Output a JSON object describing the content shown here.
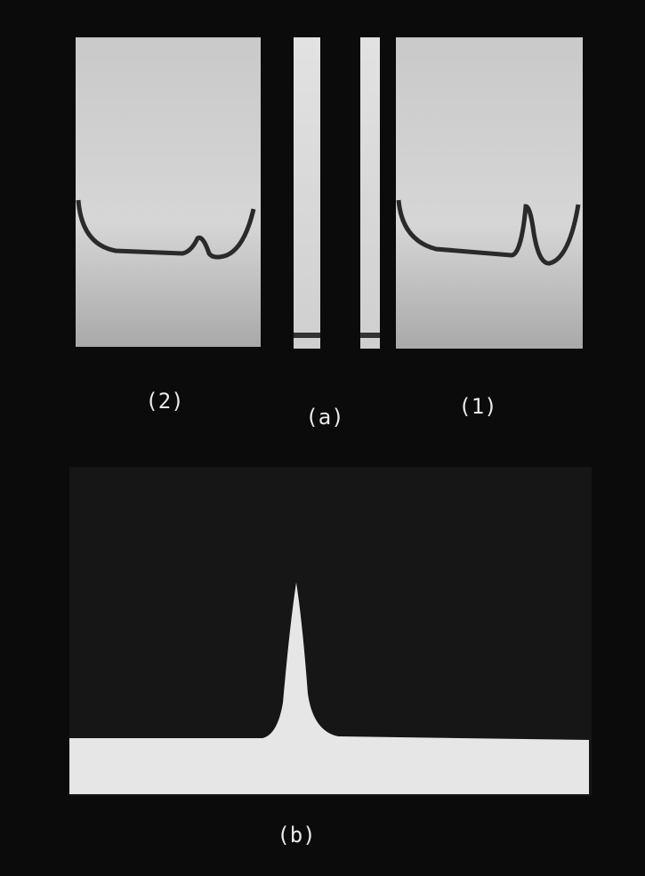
{
  "labels": {
    "panel_2": "(2)",
    "panel_a": "(a)",
    "panel_1": "(1)",
    "panel_b": "(b)"
  }
}
